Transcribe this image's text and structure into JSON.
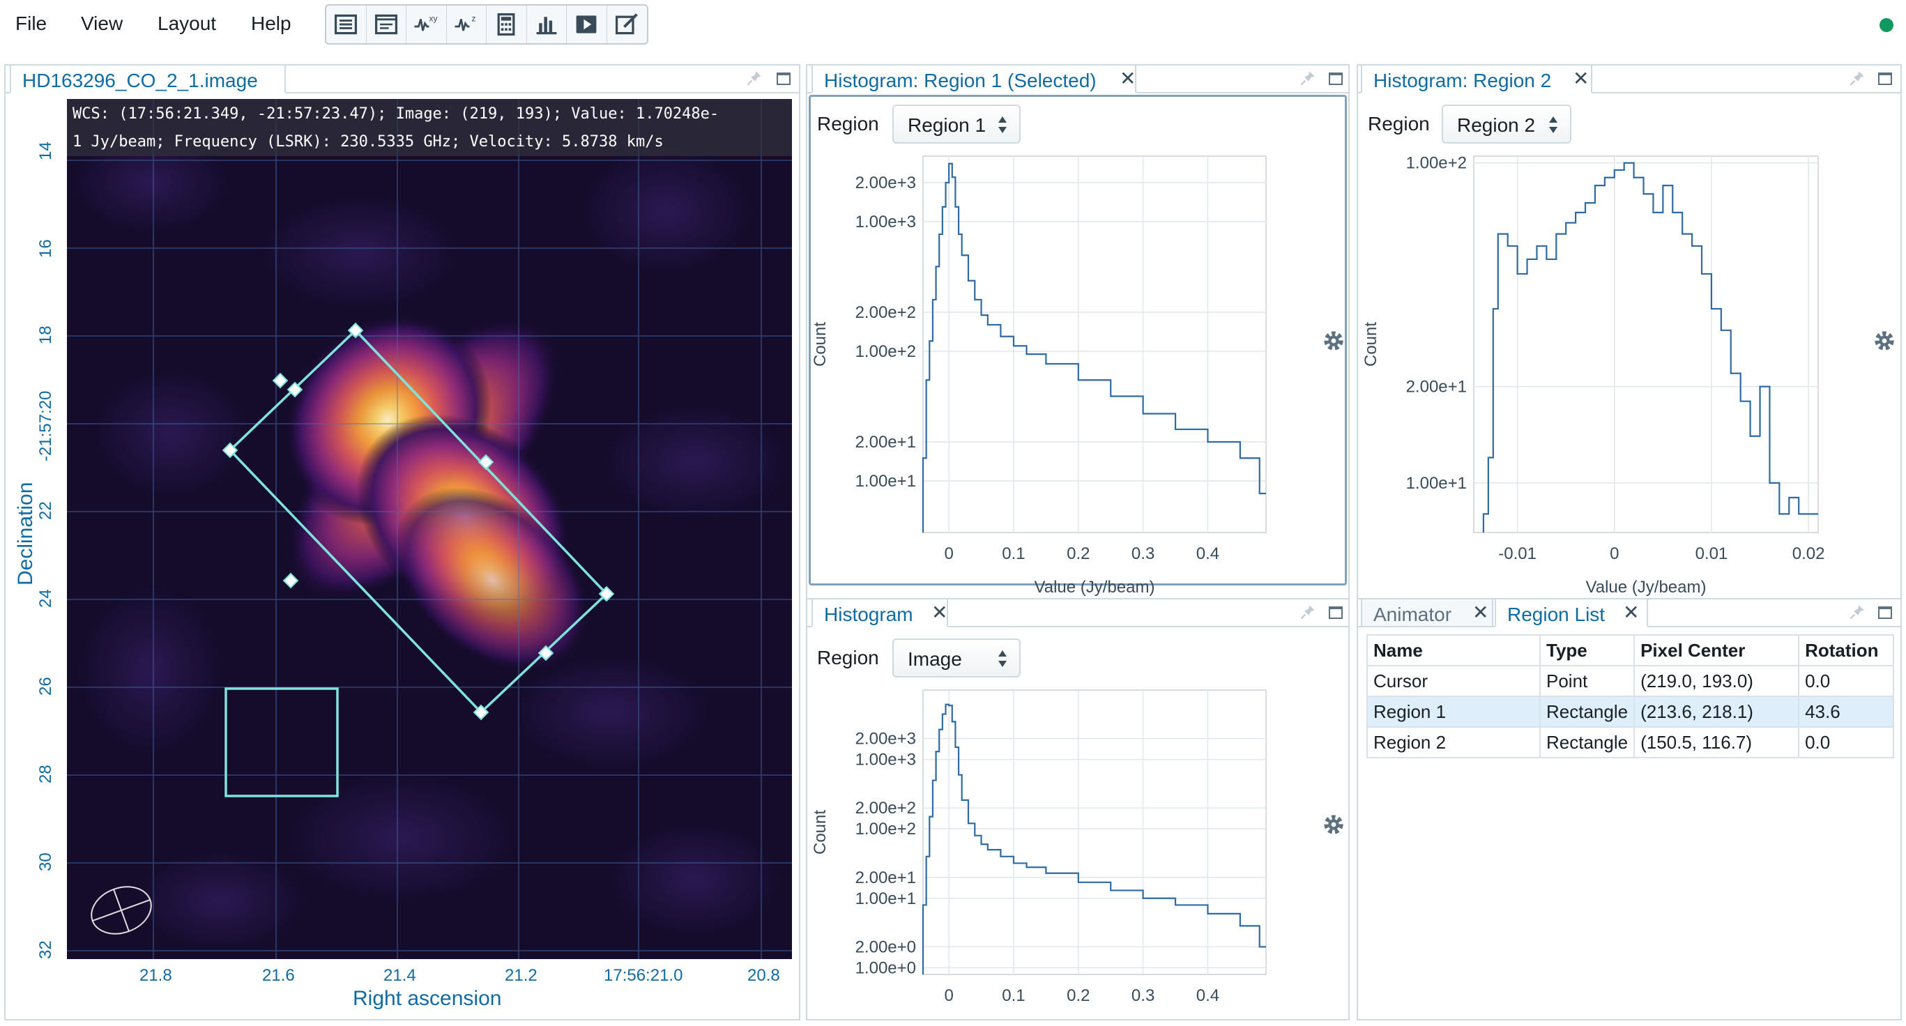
{
  "menu": {
    "file": "File",
    "view": "View",
    "layout": "Layout",
    "help": "Help"
  },
  "toolbar": {
    "buttons": [
      {
        "icon": "list-icon"
      },
      {
        "icon": "log-icon"
      },
      {
        "icon": "spatial-profiler-icon",
        "label": "xy"
      },
      {
        "icon": "spectral-profiler-icon",
        "label": "z"
      },
      {
        "icon": "calculator-icon"
      },
      {
        "icon": "bar-chart-icon"
      },
      {
        "icon": "animator-icon"
      },
      {
        "icon": "edit-icon"
      }
    ]
  },
  "status": {
    "color": "#0f9960"
  },
  "image_viewer": {
    "tab": "HD163296_CO_2_1.image",
    "wcs_line1": "WCS: (17:56:21.349, -21:57:23.47); Image: (219, 193); Value:  1.70248e-",
    "wcs_line2": "1 Jy/beam; Frequency (LSRK): 230.5335 GHz; Velocity: 5.8738 km/s",
    "x_ticks": [
      "21.8",
      "21.6",
      "21.4",
      "21.2",
      "17:56:21.0",
      "20.8"
    ],
    "y_ticks": [
      "14",
      "16",
      "18",
      "-21:57:20",
      "22",
      "24",
      "26",
      "28",
      "30",
      "32"
    ],
    "x_title": "Right ascension",
    "y_title": "Declination",
    "region_color": "#7fe3dc"
  },
  "hist1": {
    "tab": "Histogram: Region 1 (Selected)",
    "region_label": "Region",
    "region_value": "Region 1",
    "y_label": "Count",
    "x_label": "Value (Jy/beam)"
  },
  "hist2": {
    "tab": "Histogram: Region 2",
    "region_label": "Region",
    "region_value": "Region 2",
    "y_label": "Count",
    "x_label": "Value (Jy/beam)"
  },
  "hist3": {
    "tab": "Histogram",
    "region_label": "Region",
    "region_value": "Image",
    "y_label": "Count",
    "x_label": "Value (Jy/beam)"
  },
  "bottom_right": {
    "tab_animator": "Animator",
    "tab_region_list": "Region List",
    "headers": [
      "Name",
      "Type",
      "Pixel Center",
      "Rotation"
    ],
    "rows": [
      [
        "Cursor",
        "Point",
        "(219.0, 193.0)",
        "0.0"
      ],
      [
        "Region 1",
        "Rectangle",
        "(213.6, 218.1)",
        "43.6"
      ],
      [
        "Region 2",
        "Rectangle",
        "(150.5, 116.7)",
        "0.0"
      ]
    ]
  },
  "chart_data": [
    {
      "type": "line",
      "title": "",
      "xlabel": "Value (Jy/beam)",
      "ylabel": "Count",
      "y_scale": "log",
      "x_ticks": [
        0,
        0.1,
        0.2,
        0.3,
        0.4
      ],
      "y_tick_labels": [
        "2.00e+3",
        "1.00e+3",
        "2.00e+2",
        "1.00e+2",
        "2.00e+1",
        "1.00e+1"
      ],
      "y_ticks": [
        2000,
        1000,
        200,
        100,
        20,
        10
      ],
      "xlim": [
        -0.04,
        0.49
      ],
      "ylim": [
        4,
        3200
      ],
      "x": [
        -0.04,
        -0.035,
        -0.03,
        -0.025,
        -0.02,
        -0.015,
        -0.01,
        -0.005,
        0,
        0.005,
        0.01,
        0.015,
        0.02,
        0.03,
        0.04,
        0.05,
        0.06,
        0.08,
        0.1,
        0.12,
        0.15,
        0.2,
        0.25,
        0.3,
        0.35,
        0.4,
        0.45,
        0.48
      ],
      "values": [
        15,
        60,
        120,
        250,
        450,
        800,
        1300,
        2000,
        2800,
        2200,
        1300,
        800,
        550,
        350,
        250,
        190,
        160,
        130,
        110,
        95,
        80,
        60,
        45,
        33,
        25,
        20,
        15,
        8
      ]
    },
    {
      "type": "line",
      "title": "",
      "xlabel": "Value (Jy/beam)",
      "ylabel": "Count",
      "y_scale": "log",
      "x_ticks": [
        -0.01,
        0,
        0.01,
        0.02
      ],
      "x_tick_labels": [
        "-0.01",
        "0",
        "0.01",
        "0.02"
      ],
      "y_tick_labels": [
        "1.00e+2",
        "2.00e+1",
        "1.00e+1"
      ],
      "y_ticks": [
        100,
        20,
        10
      ],
      "xlim": [
        -0.0145,
        0.021
      ],
      "ylim": [
        7,
        105
      ],
      "x": [
        -0.0135,
        -0.013,
        -0.0125,
        -0.012,
        -0.011,
        -0.01,
        -0.009,
        -0.008,
        -0.007,
        -0.006,
        -0.005,
        -0.004,
        -0.003,
        -0.002,
        -0.001,
        0,
        0.001,
        0.002,
        0.003,
        0.004,
        0.005,
        0.006,
        0.007,
        0.008,
        0.009,
        0.01,
        0.011,
        0.012,
        0.013,
        0.014,
        0.015,
        0.016,
        0.017,
        0.018,
        0.019,
        0.02
      ],
      "values": [
        8,
        12,
        35,
        60,
        55,
        45,
        50,
        55,
        50,
        60,
        65,
        70,
        75,
        85,
        90,
        95,
        100,
        90,
        80,
        70,
        85,
        70,
        60,
        55,
        45,
        35,
        30,
        22,
        18,
        14,
        20,
        10,
        8,
        9,
        8,
        8
      ]
    },
    {
      "type": "line",
      "title": "",
      "xlabel": "Value (Jy/beam)",
      "ylabel": "Count",
      "y_scale": "log",
      "x_ticks": [
        0,
        0.1,
        0.2,
        0.3,
        0.4
      ],
      "y_tick_labels": [
        "2.00e+3",
        "1.00e+3",
        "2.00e+2",
        "1.00e+2",
        "2.00e+1",
        "1.00e+1",
        "2.00e+0",
        "1.00e+0"
      ],
      "y_ticks": [
        2000,
        1000,
        200,
        100,
        20,
        10,
        2,
        1
      ],
      "xlim": [
        -0.04,
        0.49
      ],
      "ylim": [
        0.8,
        10000
      ],
      "x": [
        -0.04,
        -0.035,
        -0.03,
        -0.025,
        -0.02,
        -0.015,
        -0.01,
        -0.005,
        0,
        0.005,
        0.01,
        0.015,
        0.02,
        0.03,
        0.04,
        0.05,
        0.06,
        0.08,
        0.1,
        0.12,
        0.15,
        0.2,
        0.25,
        0.3,
        0.35,
        0.4,
        0.45,
        0.48
      ],
      "values": [
        8,
        40,
        150,
        500,
        1300,
        2700,
        4500,
        6200,
        6000,
        3500,
        1500,
        600,
        260,
        120,
        80,
        60,
        50,
        40,
        32,
        28,
        23,
        17,
        13,
        10,
        8,
        6,
        4,
        2
      ]
    }
  ]
}
